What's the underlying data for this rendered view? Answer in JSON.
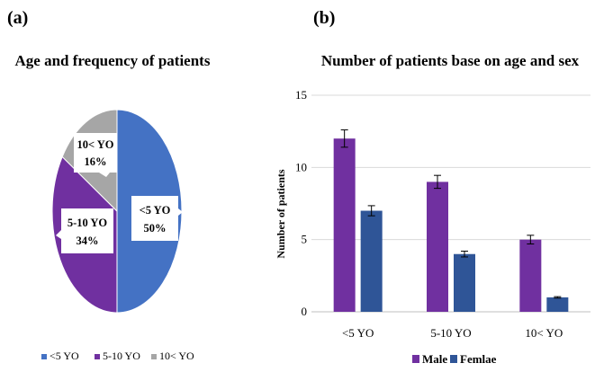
{
  "colors": {
    "slice_under5": "#4472C4",
    "slice_5to10": "#7030A0",
    "slice_over10": "#A6A6A6",
    "male": "#7030A0",
    "female": "#2F5597",
    "grid": "#D9D9D9",
    "error": "#000000"
  },
  "chart_data": [
    {
      "type": "pie",
      "panel_label": "(a)",
      "title": "Age and frequency of patients",
      "categories": [
        "<5 YO",
        "5-10 YO",
        "10< YO"
      ],
      "values": [
        50,
        34,
        16
      ],
      "slice_labels": [
        {
          "category": "<5 YO",
          "value": "50%"
        },
        {
          "category": "5-10 YO",
          "value": "34%"
        },
        {
          "category": "10< YO",
          "value": "16%"
        }
      ],
      "legend": [
        "<5 YO",
        "5-10 YO",
        "10< YO"
      ],
      "legend_position": "bottom"
    },
    {
      "type": "bar",
      "panel_label": "(b)",
      "title": "Number of patients base on age and sex",
      "categories": [
        "<5 YO",
        "5-10 YO",
        "10< YO"
      ],
      "series": [
        {
          "name": "Male",
          "values": [
            12,
            9,
            5
          ],
          "errors": [
            0.6,
            0.45,
            0.3
          ]
        },
        {
          "name": "Femlae",
          "values": [
            7,
            4,
            1
          ],
          "errors": [
            0.35,
            0.2,
            0.05
          ]
        }
      ],
      "ylabel": "Number of patients",
      "ylim": [
        0,
        15
      ],
      "yticks": [
        0,
        5,
        10,
        15
      ],
      "grid": true,
      "legend_position": "bottom"
    }
  ]
}
